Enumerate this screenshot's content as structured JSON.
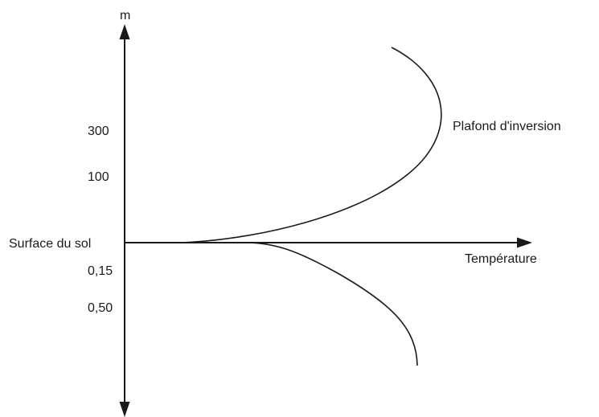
{
  "diagram": {
    "vertical_axis_unit": "m",
    "horizontal_axis_label": "Température",
    "ground_label": "Surface du sol",
    "curve_label": "Plafond d'inversion",
    "tick_labels_above_ground": [
      "300",
      "100"
    ],
    "tick_labels_below_ground": [
      "0,15",
      "0,50"
    ]
  }
}
